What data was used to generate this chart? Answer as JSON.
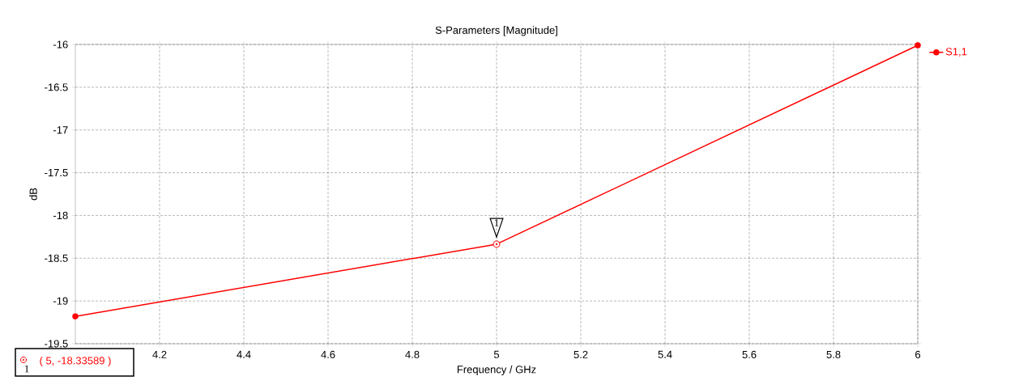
{
  "chart_data": {
    "type": "line",
    "title": "S-Parameters [Magnitude]",
    "xlabel": "Frequency / GHz",
    "ylabel": "dB",
    "x": [
      4,
      5,
      6
    ],
    "series": [
      {
        "name": "S1,1",
        "color": "#ff0000",
        "values": [
          -19.18,
          -18.33589,
          -16.01
        ]
      }
    ],
    "xlim": [
      4,
      6
    ],
    "ylim": [
      -19.5,
      -16
    ],
    "xticks": [
      4.2,
      4.4,
      4.6,
      4.8,
      5,
      5.2,
      5.4,
      5.6,
      5.8,
      6
    ],
    "yticks": [
      -19.5,
      -19,
      -18.5,
      -18,
      -17.5,
      -17,
      -16.5,
      -16
    ],
    "grid": true,
    "legend": "top right",
    "marker": "circle",
    "line_style": "solid",
    "annotations": [
      {
        "text": "1",
        "x": 5,
        "y": -18.33589
      },
      "( 5, -18.33589 )",
      "1"
    ]
  }
}
